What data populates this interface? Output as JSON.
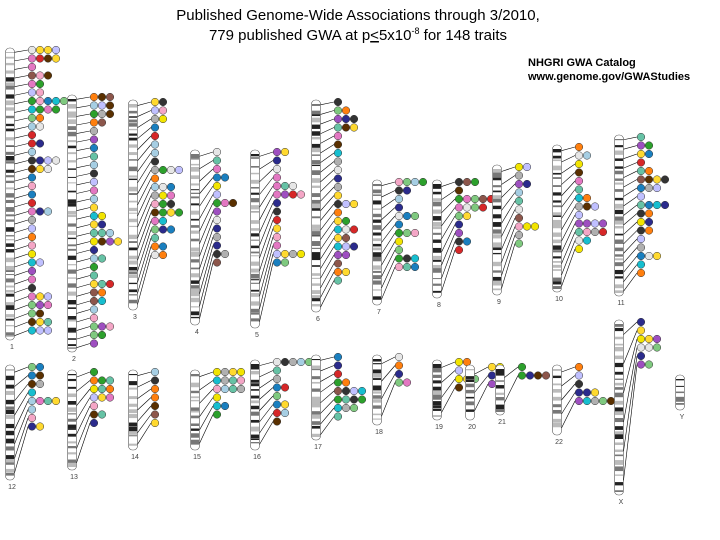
{
  "header": {
    "title": "Published Genome-Wide Associations through 3/2010,",
    "subtitle_parts": [
      "779 published GWA at p",
      "<",
      "5x10",
      "-8",
      " for 148 traits"
    ]
  },
  "source": {
    "name": "NHGRI GWA Catalog",
    "url": "www.genome.gov/GWAStudies"
  },
  "chromosomes": [
    {
      "label": "1"
    },
    {
      "label": "2"
    },
    {
      "label": "3"
    },
    {
      "label": "4"
    },
    {
      "label": "5"
    },
    {
      "label": "6"
    },
    {
      "label": "7"
    },
    {
      "label": "8"
    },
    {
      "label": "9"
    },
    {
      "label": "10"
    },
    {
      "label": "11"
    },
    {
      "label": "12"
    },
    {
      "label": "13"
    },
    {
      "label": "14"
    },
    {
      "label": "15"
    },
    {
      "label": "16"
    },
    {
      "label": "17"
    },
    {
      "label": "18"
    },
    {
      "label": "19"
    },
    {
      "label": "20"
    },
    {
      "label": "21"
    },
    {
      "label": "22"
    },
    {
      "label": "X"
    },
    {
      "label": "Y"
    }
  ]
}
